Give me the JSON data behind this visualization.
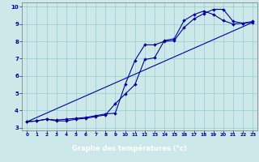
{
  "xlabel": "Graphe des températures (°c)",
  "bg_color": "#cce8e8",
  "grid_color": "#99cccc",
  "line_color": "#0000aa",
  "xlim_min": -0.5,
  "xlim_max": 23.5,
  "ylim_min": 2.85,
  "ylim_max": 10.25,
  "xticks": [
    0,
    1,
    2,
    3,
    4,
    5,
    6,
    7,
    8,
    9,
    10,
    11,
    12,
    13,
    14,
    15,
    16,
    17,
    18,
    19,
    20,
    21,
    22,
    23
  ],
  "yticks": [
    3,
    4,
    5,
    6,
    7,
    8,
    9,
    10
  ],
  "line1_x": [
    0,
    1,
    2,
    3,
    4,
    5,
    6,
    7,
    8,
    9,
    10,
    11,
    12,
    13,
    14,
    15,
    16,
    17,
    18,
    19,
    20,
    21,
    22,
    23
  ],
  "line1_y": [
    3.35,
    3.4,
    3.5,
    3.45,
    3.5,
    3.55,
    3.6,
    3.7,
    3.8,
    3.85,
    5.5,
    6.9,
    7.8,
    7.8,
    8.0,
    8.05,
    8.8,
    9.3,
    9.6,
    9.85,
    9.85,
    9.15,
    9.05,
    9.1
  ],
  "line2_x": [
    0,
    1,
    2,
    3,
    4,
    5,
    6,
    7,
    8,
    9,
    10,
    11,
    12,
    13,
    14,
    15,
    16,
    17,
    18,
    19,
    20,
    21,
    22,
    23
  ],
  "line2_y": [
    3.35,
    3.4,
    3.5,
    3.4,
    3.4,
    3.5,
    3.55,
    3.65,
    3.75,
    4.4,
    4.95,
    5.5,
    6.95,
    7.05,
    8.05,
    8.15,
    9.2,
    9.55,
    9.75,
    9.55,
    9.2,
    9.0,
    9.05,
    9.15
  ],
  "line3_x": [
    0,
    23
  ],
  "line3_y": [
    3.35,
    9.1
  ],
  "xlabel_bg": "#0000aa",
  "xlabel_fg": "#ffffff",
  "tick_color": "#0000aa",
  "xlabel_fontsize": 6.0,
  "tick_fontsize_x": 4.2,
  "tick_fontsize_y": 5.0
}
